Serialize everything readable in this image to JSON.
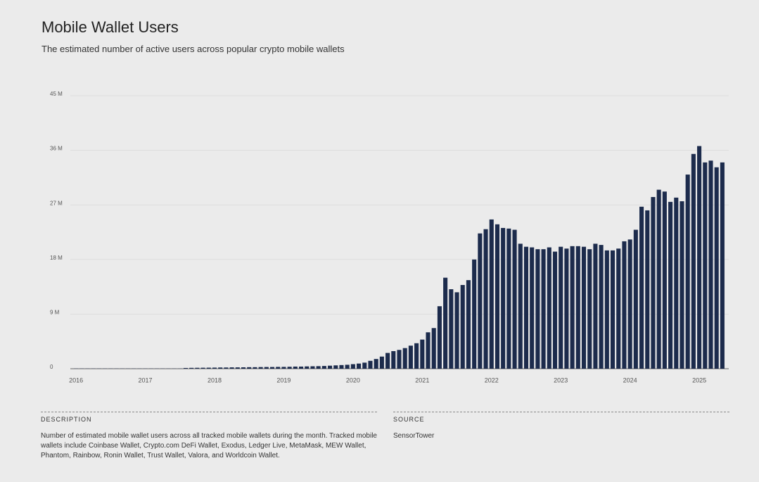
{
  "chart_data": {
    "type": "bar",
    "title": "Mobile Wallet Users",
    "subtitle": "The estimated number of active users across popular crypto mobile wallets",
    "categories": [
      "2016",
      null,
      null,
      null,
      null,
      null,
      null,
      null,
      null,
      null,
      null,
      null,
      "2017",
      null,
      null,
      null,
      null,
      null,
      null,
      null,
      null,
      null,
      null,
      null,
      "2018",
      null,
      null,
      null,
      null,
      null,
      null,
      null,
      null,
      null,
      null,
      null,
      "2019",
      null,
      null,
      null,
      null,
      null,
      null,
      null,
      null,
      null,
      null,
      null,
      "2020",
      null,
      null,
      null,
      null,
      null,
      null,
      null,
      null,
      null,
      null,
      null,
      "2021",
      null,
      null,
      null,
      null,
      null,
      null,
      null,
      null,
      null,
      null,
      null,
      "2022",
      null,
      null,
      null,
      null,
      null,
      null,
      null,
      null,
      null,
      null,
      null,
      "2023",
      null,
      null,
      null,
      null,
      null,
      null,
      null,
      null,
      null,
      null,
      null,
      "2024",
      null,
      null,
      null,
      null,
      null,
      null,
      null,
      null,
      null,
      null,
      null,
      "2025",
      null,
      null,
      null,
      null
    ],
    "values": [
      0.03,
      0.03,
      0.03,
      0.03,
      0.03,
      0.03,
      0.03,
      0.03,
      0.03,
      0.03,
      0.03,
      0.03,
      0.03,
      0.03,
      0.03,
      0.03,
      0.03,
      0.03,
      0.03,
      0.12,
      0.14,
      0.15,
      0.16,
      0.17,
      0.18,
      0.2,
      0.2,
      0.22,
      0.22,
      0.23,
      0.25,
      0.25,
      0.27,
      0.28,
      0.28,
      0.3,
      0.3,
      0.32,
      0.35,
      0.35,
      0.38,
      0.4,
      0.42,
      0.45,
      0.5,
      0.55,
      0.6,
      0.65,
      0.75,
      0.85,
      1.0,
      1.3,
      1.6,
      2.0,
      2.6,
      2.9,
      3.1,
      3.4,
      3.8,
      4.2,
      4.8,
      6.0,
      6.7,
      10.3,
      15.0,
      13.1,
      12.6,
      13.8,
      14.6,
      18.0,
      22.3,
      23.0,
      24.6,
      23.8,
      23.2,
      23.1,
      22.9,
      20.6,
      20.1,
      20.0,
      19.7,
      19.7,
      20.0,
      19.3,
      20.1,
      19.8,
      20.2,
      20.2,
      20.1,
      19.7,
      20.6,
      20.4,
      19.5,
      19.5,
      19.8,
      21.0,
      21.3,
      22.9,
      26.7,
      26.1,
      28.3,
      29.5,
      29.2,
      27.5,
      28.2,
      27.6,
      32.0,
      35.4,
      36.7,
      34.0,
      34.3,
      33.2,
      34.0
    ],
    "color": "#1c2b4c",
    "ylim": [
      0,
      45
    ],
    "yticks": [
      0,
      {
        "value": 9,
        "label": "9 M"
      },
      {
        "value": 18,
        "label": "18 M"
      },
      {
        "value": 27,
        "label": "27 M"
      },
      {
        "value": 36,
        "label": "36 M"
      },
      {
        "value": 45,
        "label": "45 M"
      }
    ],
    "grid": true,
    "description_label": "DESCRIPTION",
    "description": "Number of estimated mobile wallet users across all tracked mobile wallets during the month. Tracked mobile wallets include Coinbase Wallet, Crypto.com DeFi Wallet, Exodus, Ledger Live, MetaMask, MEW Wallet, Phantom, Rainbow, Ronin Wallet, Trust Wallet, Valora, and Worldcoin Wallet.",
    "source_label": "SOURCE",
    "source": "SensorTower"
  }
}
